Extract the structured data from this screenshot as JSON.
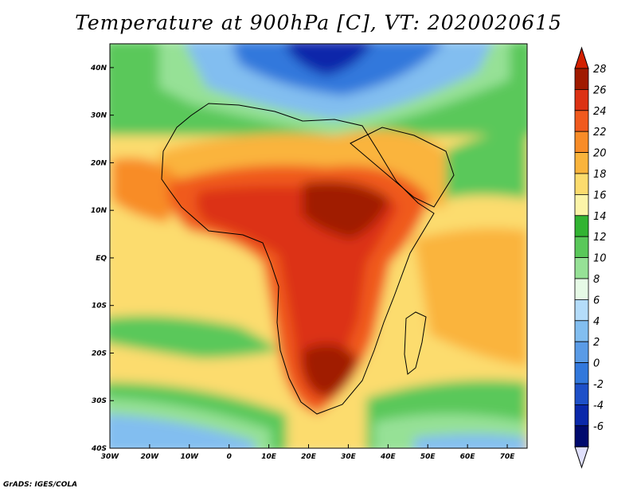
{
  "title": "Temperature at 900hPa [C], VT: 2020020615",
  "credit": "GrADS: IGES/COLA",
  "map": {
    "lon_range": [
      -30,
      75
    ],
    "lat_range": [
      -40,
      45
    ],
    "x_ticks": [
      {
        "lon": -30,
        "label": "30W"
      },
      {
        "lon": -20,
        "label": "20W"
      },
      {
        "lon": -10,
        "label": "10W"
      },
      {
        "lon": 0,
        "label": "0"
      },
      {
        "lon": 10,
        "label": "10E"
      },
      {
        "lon": 20,
        "label": "20E"
      },
      {
        "lon": 30,
        "label": "30E"
      },
      {
        "lon": 40,
        "label": "40E"
      },
      {
        "lon": 50,
        "label": "50E"
      },
      {
        "lon": 60,
        "label": "60E"
      },
      {
        "lon": 70,
        "label": "70E"
      }
    ],
    "y_ticks": [
      {
        "lat": 40,
        "label": "40N"
      },
      {
        "lat": 30,
        "label": "30N"
      },
      {
        "lat": 20,
        "label": "20N"
      },
      {
        "lat": 10,
        "label": "10N"
      },
      {
        "lat": 0,
        "label": "EQ"
      },
      {
        "lat": -10,
        "label": "10S"
      },
      {
        "lat": -20,
        "label": "20S"
      },
      {
        "lat": -30,
        "label": "30S"
      },
      {
        "lat": -40,
        "label": "40S"
      }
    ]
  },
  "colorbar": {
    "levels": [
      "28",
      "26",
      "24",
      "22",
      "20",
      "18",
      "16",
      "14",
      "12",
      "10",
      "8",
      "6",
      "4",
      "2",
      "0",
      "-2",
      "-4",
      "-6"
    ],
    "colors": [
      "#a01a00",
      "#dc3214",
      "#f05a1e",
      "#f88c28",
      "#fab43c",
      "#fcdc6e",
      "#fcf4a8",
      "#32b432",
      "#5ac85a",
      "#96e196",
      "#e6fae6",
      "#b4dcfa",
      "#82bef0",
      "#5a9be6",
      "#3278dc",
      "#1e50c8",
      "#0a28aa",
      "#000a6e"
    ],
    "top_arrow_color": "#d22000",
    "bottom_arrow_color": "#e0e0fc"
  }
}
